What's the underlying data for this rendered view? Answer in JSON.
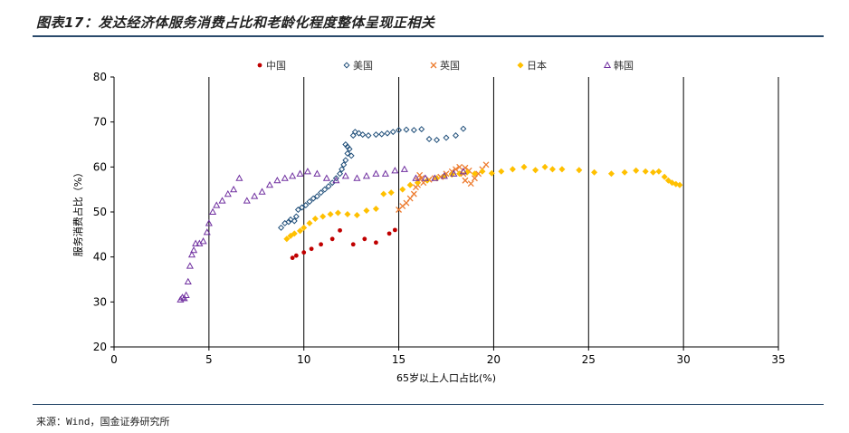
{
  "figure": {
    "title": "图表17：发达经济体服务消费占比和老龄化程度整体呈现正相关",
    "source": "来源：Wind，国金证券研究所"
  },
  "chart_data": {
    "type": "scatter",
    "xlabel": "65岁以上人口占比(%)",
    "ylabel": "服务消费占比（%）",
    "xlim": [
      0,
      35
    ],
    "ylim": [
      20,
      80
    ],
    "xticks": [
      0,
      5,
      10,
      15,
      20,
      25,
      30,
      35
    ],
    "yticks": [
      20,
      30,
      40,
      50,
      60,
      70,
      80
    ],
    "grid": "vertical",
    "legend": "top",
    "series": [
      {
        "name": "中国",
        "color": "#c00000",
        "marker": "circle",
        "points": [
          [
            9.4,
            39.8
          ],
          [
            9.6,
            40.3
          ],
          [
            10.0,
            41.0
          ],
          [
            10.4,
            41.8
          ],
          [
            10.9,
            42.8
          ],
          [
            11.5,
            44.0
          ],
          [
            11.9,
            45.9
          ],
          [
            12.6,
            42.8
          ],
          [
            13.2,
            44.0
          ],
          [
            13.8,
            43.2
          ],
          [
            14.5,
            45.2
          ],
          [
            14.8,
            46.0
          ]
        ]
      },
      {
        "name": "美国",
        "color": "#1f4e79",
        "marker": "diamond",
        "points": [
          [
            8.8,
            46.5
          ],
          [
            9.0,
            47.5
          ],
          [
            9.2,
            47.8
          ],
          [
            9.3,
            48.3
          ],
          [
            9.5,
            48.0
          ],
          [
            9.6,
            49.0
          ],
          [
            9.7,
            50.5
          ],
          [
            9.9,
            51.0
          ],
          [
            10.1,
            51.5
          ],
          [
            10.3,
            52.3
          ],
          [
            10.5,
            53.0
          ],
          [
            10.7,
            53.5
          ],
          [
            10.9,
            54.3
          ],
          [
            11.1,
            55.0
          ],
          [
            11.3,
            55.7
          ],
          [
            11.5,
            56.5
          ],
          [
            11.7,
            57.5
          ],
          [
            11.9,
            58.5
          ],
          [
            12.0,
            59.5
          ],
          [
            12.1,
            60.5
          ],
          [
            12.2,
            61.5
          ],
          [
            12.3,
            63.0
          ],
          [
            12.3,
            64.5
          ],
          [
            12.2,
            65.0
          ],
          [
            12.4,
            64.0
          ],
          [
            12.5,
            62.5
          ],
          [
            12.6,
            67.0
          ],
          [
            12.7,
            67.8
          ],
          [
            12.9,
            67.5
          ],
          [
            13.1,
            67.2
          ],
          [
            13.4,
            67.0
          ],
          [
            13.8,
            67.2
          ],
          [
            14.1,
            67.3
          ],
          [
            14.4,
            67.5
          ],
          [
            14.7,
            67.8
          ],
          [
            15.0,
            68.2
          ],
          [
            15.4,
            68.3
          ],
          [
            15.8,
            68.2
          ],
          [
            16.2,
            68.4
          ],
          [
            16.6,
            66.2
          ],
          [
            17.0,
            66.0
          ],
          [
            17.5,
            66.5
          ],
          [
            18.0,
            67.0
          ],
          [
            18.4,
            68.5
          ]
        ]
      },
      {
        "name": "英国",
        "color": "#ed7d31",
        "marker": "cross",
        "points": [
          [
            15.0,
            50.5
          ],
          [
            15.2,
            51.3
          ],
          [
            15.4,
            52.0
          ],
          [
            15.6,
            53.0
          ],
          [
            15.8,
            54.0
          ],
          [
            15.9,
            55.5
          ],
          [
            16.0,
            57.0
          ],
          [
            16.1,
            58.2
          ],
          [
            16.2,
            57.5
          ],
          [
            16.0,
            56.0
          ],
          [
            16.3,
            56.5
          ],
          [
            16.6,
            57.2
          ],
          [
            16.9,
            57.5
          ],
          [
            17.2,
            57.8
          ],
          [
            17.5,
            58.5
          ],
          [
            17.8,
            59.0
          ],
          [
            18.0,
            59.5
          ],
          [
            18.2,
            60.0
          ],
          [
            18.5,
            59.8
          ],
          [
            18.7,
            59.2
          ],
          [
            18.4,
            58.5
          ],
          [
            18.5,
            57.0
          ],
          [
            18.8,
            56.3
          ],
          [
            19.0,
            57.5
          ],
          [
            19.2,
            58.5
          ],
          [
            19.4,
            59.5
          ],
          [
            19.6,
            60.5
          ]
        ]
      },
      {
        "name": "日本",
        "color": "#ffc000",
        "marker": "diamond",
        "points": [
          [
            9.1,
            44.0
          ],
          [
            9.3,
            44.7
          ],
          [
            9.5,
            45.2
          ],
          [
            9.8,
            45.8
          ],
          [
            10.0,
            46.5
          ],
          [
            10.3,
            47.5
          ],
          [
            10.6,
            48.5
          ],
          [
            11.0,
            49.0
          ],
          [
            11.4,
            49.5
          ],
          [
            11.8,
            49.8
          ],
          [
            12.3,
            49.5
          ],
          [
            12.8,
            49.3
          ],
          [
            13.3,
            50.3
          ],
          [
            13.8,
            50.7
          ],
          [
            14.2,
            54.0
          ],
          [
            14.6,
            54.3
          ],
          [
            15.2,
            55.0
          ],
          [
            15.6,
            56.0
          ],
          [
            16.0,
            56.5
          ],
          [
            16.5,
            57.0
          ],
          [
            17.0,
            57.5
          ],
          [
            17.4,
            58.0
          ],
          [
            17.8,
            58.3
          ],
          [
            18.2,
            58.5
          ],
          [
            18.6,
            58.8
          ],
          [
            19.0,
            58.5
          ],
          [
            19.4,
            59.0
          ],
          [
            19.9,
            58.6
          ],
          [
            20.4,
            59.0
          ],
          [
            21.0,
            59.5
          ],
          [
            21.6,
            60.0
          ],
          [
            22.2,
            59.3
          ],
          [
            22.7,
            60.0
          ],
          [
            23.1,
            59.5
          ],
          [
            23.6,
            59.5
          ],
          [
            24.5,
            59.3
          ],
          [
            25.3,
            58.8
          ],
          [
            26.2,
            58.5
          ],
          [
            26.9,
            58.8
          ],
          [
            27.5,
            59.2
          ],
          [
            28.0,
            59.0
          ],
          [
            28.4,
            58.8
          ],
          [
            28.7,
            59.0
          ],
          [
            29.0,
            57.8
          ],
          [
            29.2,
            57.0
          ],
          [
            29.4,
            56.5
          ],
          [
            29.6,
            56.2
          ],
          [
            29.8,
            56.0
          ]
        ]
      },
      {
        "name": "韩国",
        "color": "#7030a0",
        "marker": "triangle",
        "points": [
          [
            3.5,
            30.5
          ],
          [
            3.6,
            31.0
          ],
          [
            3.7,
            30.8
          ],
          [
            3.8,
            31.5
          ],
          [
            3.9,
            34.5
          ],
          [
            4.0,
            38.0
          ],
          [
            4.1,
            40.5
          ],
          [
            4.2,
            41.5
          ],
          [
            4.3,
            43.0
          ],
          [
            4.5,
            43.0
          ],
          [
            4.7,
            43.5
          ],
          [
            4.9,
            45.5
          ],
          [
            5.0,
            47.5
          ],
          [
            5.2,
            50.0
          ],
          [
            5.4,
            51.5
          ],
          [
            5.7,
            52.5
          ],
          [
            6.0,
            54.0
          ],
          [
            6.3,
            55.0
          ],
          [
            6.6,
            57.5
          ],
          [
            7.0,
            52.5
          ],
          [
            7.4,
            53.5
          ],
          [
            7.8,
            54.5
          ],
          [
            8.2,
            56.0
          ],
          [
            8.6,
            57.0
          ],
          [
            9.0,
            57.5
          ],
          [
            9.4,
            58.0
          ],
          [
            9.8,
            58.5
          ],
          [
            10.2,
            59.0
          ],
          [
            10.7,
            58.5
          ],
          [
            11.2,
            57.5
          ],
          [
            11.7,
            57.0
          ],
          [
            12.2,
            58.0
          ],
          [
            12.8,
            57.5
          ],
          [
            13.3,
            58.0
          ],
          [
            13.8,
            58.5
          ],
          [
            14.3,
            58.5
          ],
          [
            14.8,
            59.2
          ],
          [
            15.3,
            59.5
          ],
          [
            15.9,
            57.5
          ],
          [
            16.4,
            57.5
          ],
          [
            16.9,
            57.5
          ],
          [
            17.4,
            58.0
          ],
          [
            17.9,
            58.5
          ],
          [
            18.4,
            59.0
          ]
        ]
      }
    ]
  }
}
